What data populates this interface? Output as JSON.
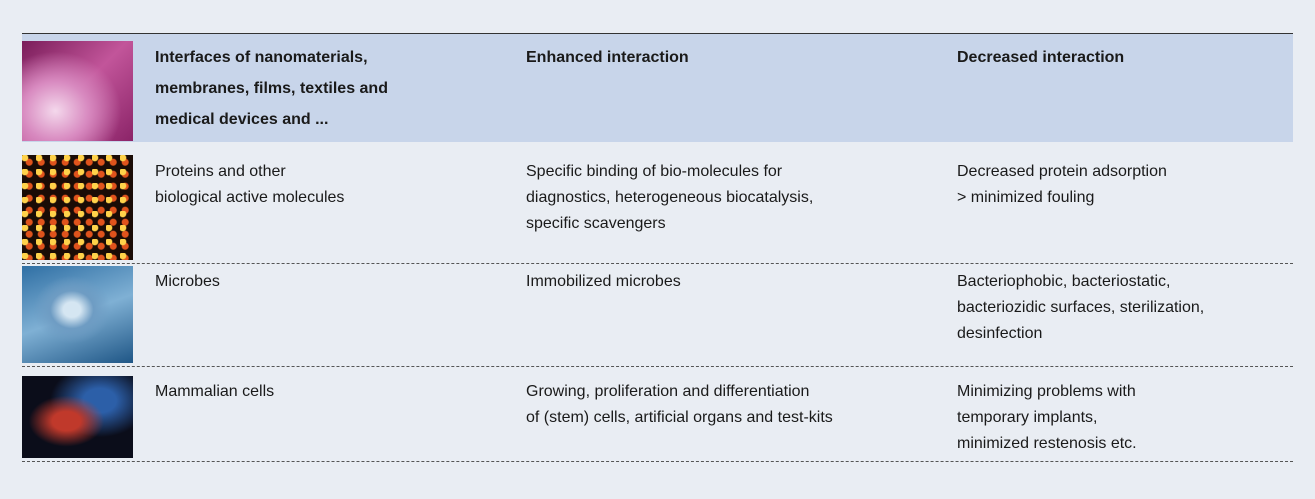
{
  "table": {
    "header": [
      [
        "Interfaces of nanomaterials,",
        "membranes, films, textiles and",
        "medical devices and ..."
      ],
      [
        "Enhanced interaction"
      ],
      [
        "Decreased interaction"
      ]
    ],
    "rows": [
      [
        [
          "Proteins and other",
          "biological active molecules"
        ],
        [
          "Specific binding of bio-molecules for",
          "diagnostics, heterogeneous biocatalysis,",
          "specific scavengers"
        ],
        [
          "Decreased protein adsorption",
          "> minimized fouling"
        ]
      ],
      [
        [
          "Microbes"
        ],
        [
          "Immobilized microbes"
        ],
        [
          "Bacteriophobic, bacteriostatic,",
          "bacteriozidic surfaces, sterilization,",
          "desinfection"
        ]
      ],
      [
        [
          "Mammalian cells"
        ],
        [
          "Growing, proliferation and differentiation",
          "of (stem) cells, artificial organs and test-kits"
        ],
        [
          "Minimizing problems with",
          "temporary implants,",
          "minimized restenosis etc."
        ]
      ]
    ]
  }
}
